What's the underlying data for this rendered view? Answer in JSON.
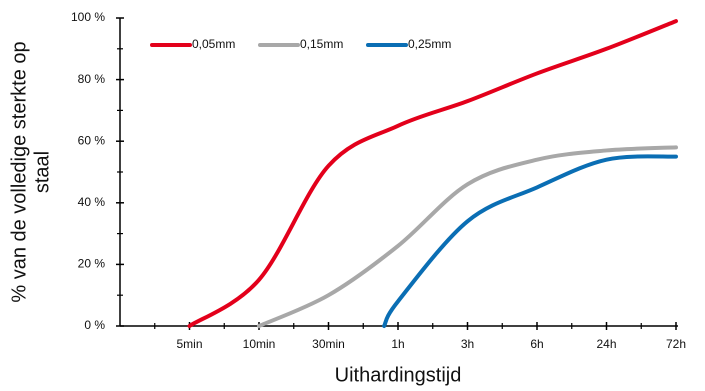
{
  "chart_data": {
    "type": "line",
    "xlabel": "Uithardingstijd",
    "ylabel": [
      "% van de volledige sterkte op",
      "staal"
    ],
    "xlim": [
      -1,
      7
    ],
    "xticks": [
      {
        "value": 0,
        "label": "5min"
      },
      {
        "value": 1,
        "label": "10min"
      },
      {
        "value": 2,
        "label": "30min"
      },
      {
        "value": 3,
        "label": "1h"
      },
      {
        "value": 4,
        "label": "3h"
      },
      {
        "value": 5,
        "label": "6h"
      },
      {
        "value": 6,
        "label": "24h"
      },
      {
        "value": 7,
        "label": "72h"
      }
    ],
    "ylim": [
      0,
      100
    ],
    "yticks": [
      {
        "value": 0,
        "label": "0 %"
      },
      {
        "value": 20,
        "label": "20 %"
      },
      {
        "value": 40,
        "label": "40 %"
      },
      {
        "value": 60,
        "label": "60 %"
      },
      {
        "value": 80,
        "label": "80 %"
      },
      {
        "value": 100,
        "label": "100 %"
      }
    ],
    "grid": false,
    "legend": "top-left",
    "series": [
      {
        "name": "0,05mm",
        "color": "#e3001b",
        "x": [
          0,
          1,
          2,
          3,
          4,
          5,
          6,
          7
        ],
        "values": [
          0,
          15,
          52,
          65,
          73,
          82,
          90,
          99
        ]
      },
      {
        "name": "0,15mm",
        "color": "#a8a8a8",
        "x": [
          1,
          2,
          3,
          4,
          5,
          6,
          7
        ],
        "values": [
          0,
          10,
          26,
          46,
          54,
          57,
          58
        ]
      },
      {
        "name": "0,25mm",
        "color": "#0a6eb4",
        "x": [
          2.8,
          3,
          4,
          5,
          6,
          7
        ],
        "values": [
          0,
          8,
          34,
          45,
          54,
          55
        ]
      }
    ]
  }
}
